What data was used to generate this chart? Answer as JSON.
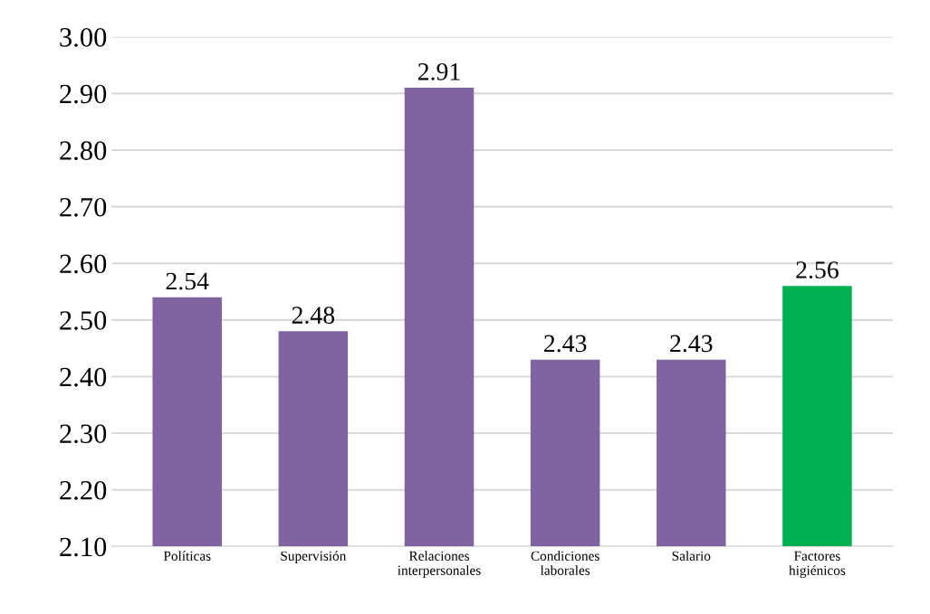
{
  "chart_data": {
    "type": "bar",
    "categories": [
      "Políticas",
      "Supervisión",
      "Relaciones\ninterpersonales",
      "Condiciones\nlaborales",
      "Salario",
      "Factores\nhigiénicos"
    ],
    "values": [
      2.54,
      2.48,
      2.91,
      2.43,
      2.43,
      2.56
    ],
    "colors": [
      "#8064a2",
      "#8064a2",
      "#8064a2",
      "#8064a2",
      "#8064a2",
      "#00b050"
    ],
    "ylim": [
      2.1,
      3.0
    ],
    "yticks": [
      {
        "value": 2.1,
        "label": "2.10"
      },
      {
        "value": 2.2,
        "label": "2.20"
      },
      {
        "value": 2.3,
        "label": "2.30"
      },
      {
        "value": 2.4,
        "label": "2.40"
      },
      {
        "value": 2.5,
        "label": "2.50"
      },
      {
        "value": 2.6,
        "label": "2.60"
      },
      {
        "value": 2.7,
        "label": "2.70"
      },
      {
        "value": 2.8,
        "label": "2.80"
      },
      {
        "value": 2.9,
        "label": "2.90"
      },
      {
        "value": 3.0,
        "label": "3.00"
      }
    ],
    "grid": "y",
    "data_labels": true
  }
}
